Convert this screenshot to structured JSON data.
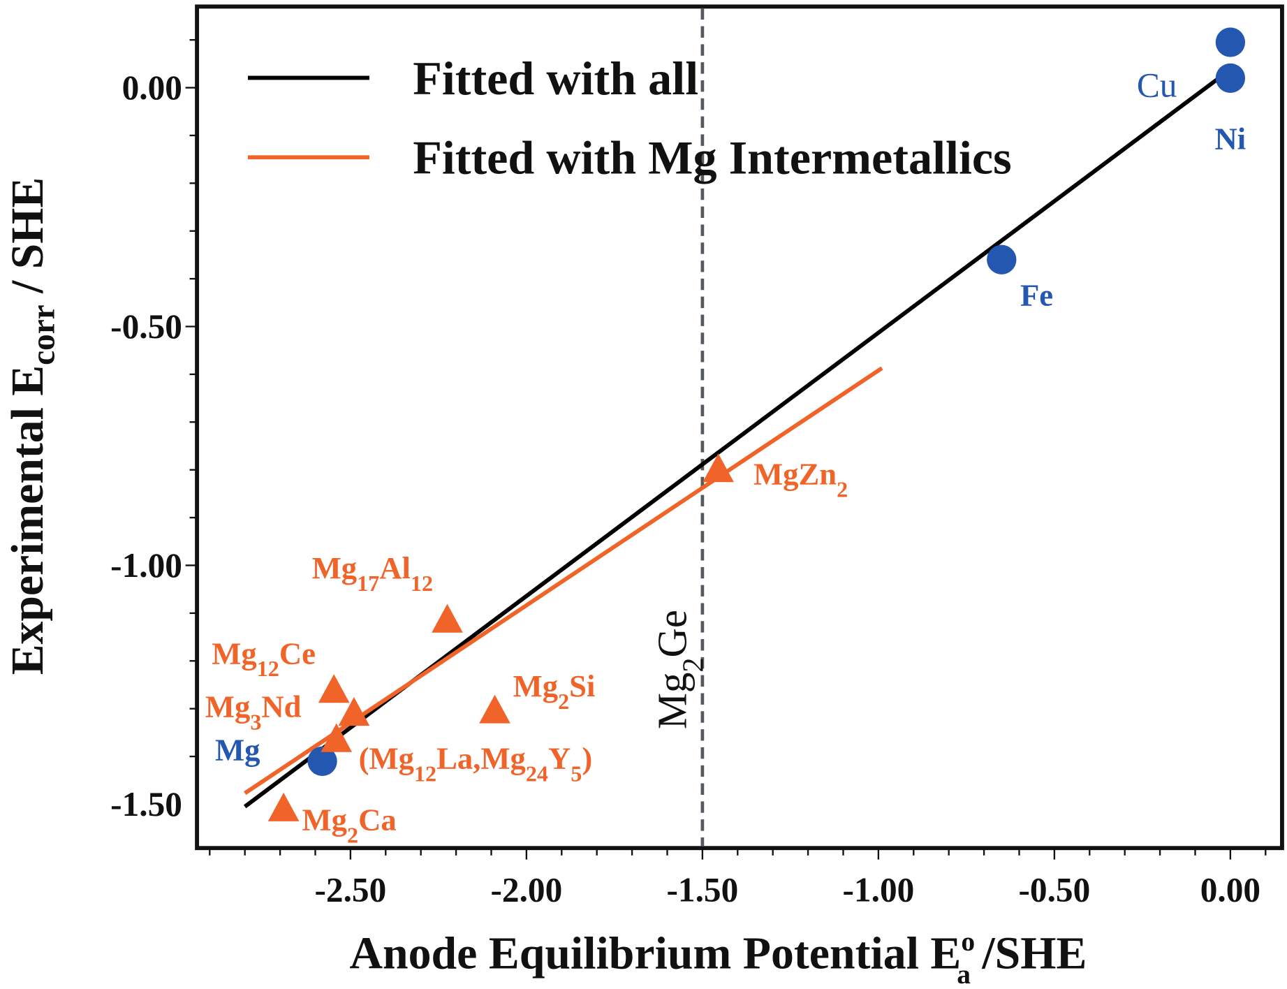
{
  "chart_data": {
    "type": "scatter",
    "xlabel": {
      "main": "Anode Equilibrium Potential E",
      "sup": "o",
      "sub": "a",
      "tail": " /SHE"
    },
    "ylabel": {
      "main": "Experimental E",
      "sub": "corr",
      "tail": " / SHE"
    },
    "xlim": [
      -2.94,
      0.15
    ],
    "ylim": [
      -1.59,
      0.17
    ],
    "x_ticks": [
      -2.5,
      -2.0,
      -1.5,
      -1.0,
      -0.5,
      0.0
    ],
    "x_tick_labels": [
      "-2.50",
      "-2.00",
      "-1.50",
      "-1.00",
      "-0.50",
      "0.00"
    ],
    "y_ticks": [
      0.0,
      -0.5,
      -1.0,
      -1.5
    ],
    "y_tick_labels": [
      "0.00",
      "-0.50",
      "-1.00",
      "-1.50"
    ],
    "minor_tick_step": 0.1,
    "grid": false,
    "legend": {
      "placement": "top-left",
      "items": [
        {
          "label": "Fitted with all",
          "color": "#000000"
        },
        {
          "label": "Fitted with Mg Intermetallics",
          "color": "#f0642a"
        }
      ]
    },
    "fit_lines": [
      {
        "name": "Fitted with all",
        "color": "#000000",
        "x": [
          -2.8,
          0.0
        ],
        "y": [
          -1.505,
          0.038
        ]
      },
      {
        "name": "Fitted with Mg Intermetallics",
        "color": "#f0642a",
        "x": [
          -2.8,
          -0.99
        ],
        "y": [
          -1.477,
          -0.587
        ]
      }
    ],
    "reference_line": {
      "x": -1.5,
      "style": "dashed",
      "label": [
        {
          "t": "Mg"
        },
        {
          "t": "2",
          "sub": true
        },
        {
          "t": "Ge"
        }
      ],
      "color": "#555a60"
    },
    "pure_metals": {
      "marker": "circle",
      "color": "#2457b0",
      "points": [
        {
          "x": 0.0,
          "y": 0.095,
          "label": [
            {
              "t": "Cu"
            }
          ]
        },
        {
          "x": 0.0,
          "y": 0.02,
          "label": [
            {
              "t": "Ni"
            }
          ]
        },
        {
          "x": -0.65,
          "y": -0.36,
          "label": [
            {
              "t": "Fe"
            }
          ]
        },
        {
          "x": -2.58,
          "y": -1.41,
          "label": [
            {
              "t": "Mg"
            }
          ]
        }
      ]
    },
    "intermetallics": {
      "marker": "triangle",
      "color": "#f0642a",
      "points": [
        {
          "x": -1.455,
          "y": -0.8,
          "label": [
            {
              "t": "MgZn"
            },
            {
              "t": "2",
              "sub": true
            }
          ]
        },
        {
          "x": -2.225,
          "y": -1.115,
          "label": [
            {
              "t": "Mg"
            },
            {
              "t": "17",
              "sub": true
            },
            {
              "t": "Al"
            },
            {
              "t": "12",
              "sub": true
            }
          ]
        },
        {
          "x": -2.547,
          "y": -1.262,
          "label": [
            {
              "t": "Mg"
            },
            {
              "t": "12",
              "sub": true
            },
            {
              "t": "Ce"
            }
          ]
        },
        {
          "x": -2.49,
          "y": -1.31,
          "label": [
            {
              "t": "Mg"
            },
            {
              "t": "3",
              "sub": true
            },
            {
              "t": "Nd"
            }
          ]
        },
        {
          "x": -2.54,
          "y": -1.365,
          "label": [
            {
              "t": "(Mg"
            },
            {
              "t": "12",
              "sub": true
            },
            {
              "t": "La,Mg"
            },
            {
              "t": "24",
              "sub": true
            },
            {
              "t": "Y"
            },
            {
              "t": "5",
              "sub": true
            },
            {
              "t": ")"
            }
          ]
        },
        {
          "x": -2.09,
          "y": -1.305,
          "label": [
            {
              "t": "Mg"
            },
            {
              "t": "2",
              "sub": true
            },
            {
              "t": "Si"
            }
          ]
        },
        {
          "x": -2.69,
          "y": -1.51,
          "label": [
            {
              "t": "Mg"
            },
            {
              "t": "2",
              "sub": true
            },
            {
              "t": "Ca"
            }
          ]
        }
      ]
    }
  }
}
